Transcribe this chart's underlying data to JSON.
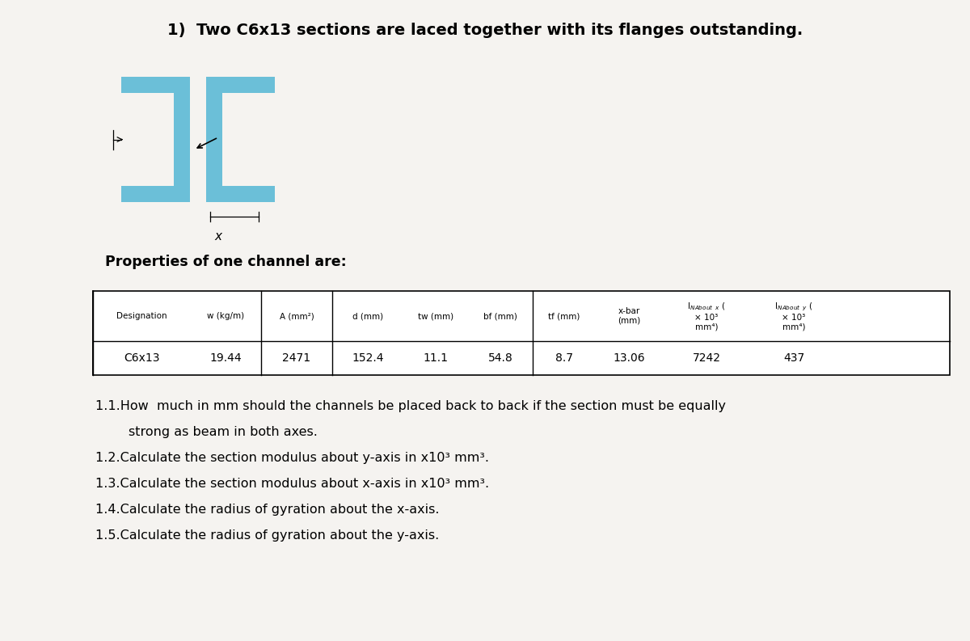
{
  "title": "1)  Two C6x13 sections are laced together with its flanges outstanding.",
  "bg_color": "#f5f3f0",
  "properties_label": "Properties of one channel are:",
  "table_row": [
    "C6x13",
    "19.44",
    "2471",
    "152.4",
    "11.1",
    "54.8",
    "8.7",
    "13.06",
    "7242",
    "437"
  ],
  "questions": [
    "1.1.How  much in mm should the channels be placed back to back if the section must be equally",
    "        strong as beam in both axes.",
    "1.2.Calculate the section modulus about y-axis in x10³ mm³.",
    "1.3.Calculate the section modulus about x-axis in x10³ mm³.",
    "1.4.Calculate the radius of gyration about the x-axis.",
    "1.5.Calculate the radius of gyration about the y-axis."
  ],
  "channel_color": "#6bbfd8",
  "white": "#ffffff",
  "black": "#000000"
}
